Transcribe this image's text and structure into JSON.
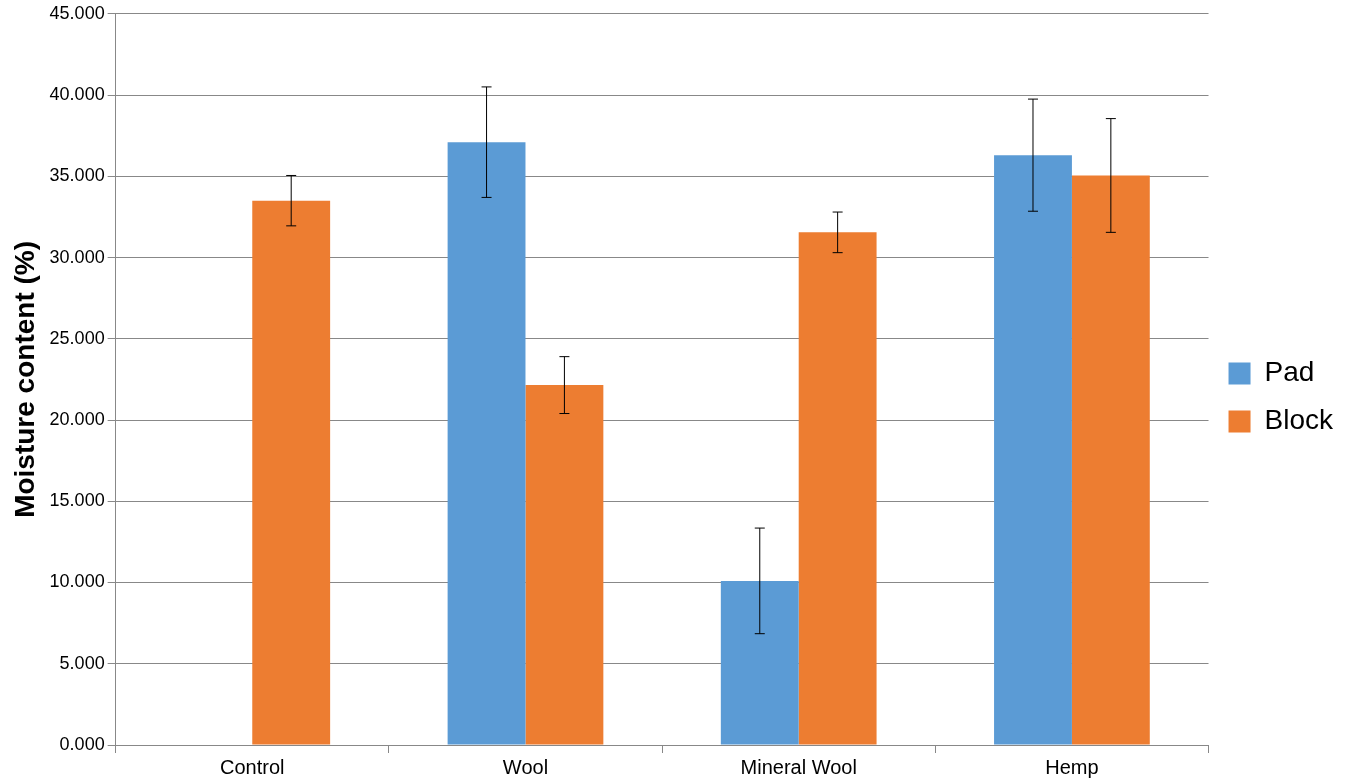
{
  "chart_data": {
    "type": "bar",
    "ylabel": "Moisture content (%)",
    "categories": [
      "Control",
      "Wool",
      "Mineral Wool",
      "Hemp"
    ],
    "series": [
      {
        "name": "Pad",
        "color": "#5b9bd5",
        "values": [
          null,
          37.1,
          10.1,
          36.3
        ],
        "errors": [
          null,
          3.4,
          3.25,
          3.45
        ]
      },
      {
        "name": "Block",
        "color": "#ed7d31",
        "values": [
          33.5,
          22.15,
          31.55,
          35.05
        ],
        "errors": [
          1.55,
          1.75,
          1.25,
          3.5
        ]
      }
    ],
    "ylim": [
      0,
      45
    ],
    "yticks": [
      {
        "value": 0,
        "label": "0.000"
      },
      {
        "value": 5,
        "label": "5.000"
      },
      {
        "value": 10,
        "label": "10.000"
      },
      {
        "value": 15,
        "label": "15.000"
      },
      {
        "value": 20,
        "label": "20.000"
      },
      {
        "value": 25,
        "label": "25.000"
      },
      {
        "value": 30,
        "label": "30.000"
      },
      {
        "value": 35,
        "label": "35.000"
      },
      {
        "value": 40,
        "label": "40.000"
      },
      {
        "value": 45,
        "label": "45.000"
      }
    ],
    "grid": "y",
    "legend": "right"
  }
}
